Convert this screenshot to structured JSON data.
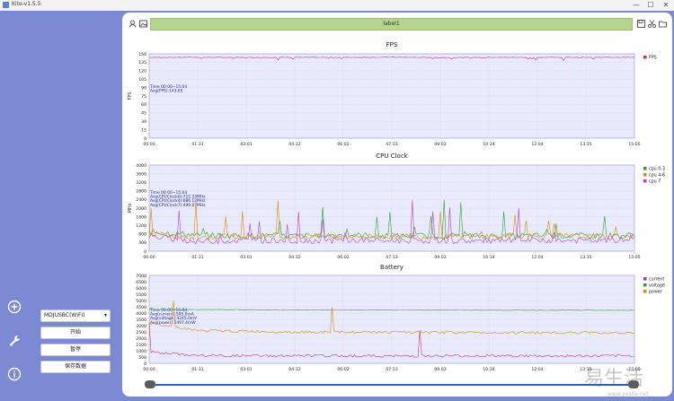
{
  "window": {
    "title": "Kite-v1.5.5",
    "minimize": "—",
    "maximize": "☐",
    "close": "✕"
  },
  "toolbar": {
    "label": "label1",
    "icons": [
      "user-icon",
      "image-icon",
      "save-icon",
      "cut-icon",
      "folder-icon"
    ]
  },
  "sidebar": {
    "icons": [
      "add-icon",
      "wrench-icon",
      "info-icon"
    ]
  },
  "controls": {
    "device": "MDJUSBC(WIFI)",
    "start_label": "开始",
    "pause_label": "暂停",
    "save_label": "保存数据"
  },
  "watermark": {
    "text": "易生活",
    "sub": "www.yesife.net"
  },
  "colors": {
    "background": "#7b88d2",
    "plot_bg": "#e9eafc",
    "fps": "#c2336f",
    "cpu03": "#2ca02c",
    "cpu46": "#d98b00",
    "cpu7": "#b33fcf",
    "current": "#c2337a",
    "voltage": "#2ca02c",
    "power": "#d98b00"
  },
  "x_ticks": [
    "00:00",
    "01:31",
    "03:01",
    "04:32",
    "06:02",
    "07:33",
    "09:03",
    "10:34",
    "12:04",
    "13:35",
    "15:05"
  ],
  "chart_data": [
    {
      "type": "line",
      "title": "FPS",
      "ylabel": "FPS",
      "ylim": [
        0,
        150
      ],
      "y_ticks": [
        "0",
        "15",
        "30",
        "45",
        "60",
        "75",
        "90",
        "105",
        "120",
        "135",
        "150"
      ],
      "annotation": [
        "Time 00:00~15:04",
        "Avg(FPS):143.65"
      ],
      "series": [
        {
          "name": "FPS",
          "values": [
            143.6,
            143.8,
            143.5,
            143.7,
            143.6,
            143.9,
            143.4,
            143.7,
            143.6,
            143.8,
            143.7
          ]
        }
      ]
    },
    {
      "type": "line",
      "title": "CPU Clock",
      "ylabel": "MHz",
      "ylim": [
        0,
        4000
      ],
      "y_ticks": [
        "0",
        "400",
        "800",
        "1200",
        "1600",
        "2000",
        "2400",
        "2800",
        "3200",
        "3600",
        "4000"
      ],
      "annotation": [
        "Time 00:00~15:04",
        "Avg(CPUClock0):722.33MHz",
        "Avg(CPUClock4):686.12MHz",
        "Avg(CPUClock7):499.07MHz"
      ],
      "series": [
        {
          "name": "cpu 0-3",
          "values": [
            900,
            750,
            720,
            700,
            760,
            690,
            730,
            700,
            720,
            710,
            740
          ]
        },
        {
          "name": "cpu 4-6",
          "values": [
            800,
            650,
            700,
            680,
            690,
            700,
            660,
            690,
            700,
            680,
            700
          ]
        },
        {
          "name": "cpu 7",
          "values": [
            700,
            450,
            500,
            480,
            510,
            490,
            500,
            470,
            500,
            490,
            520
          ]
        }
      ]
    },
    {
      "type": "line",
      "title": "Battery",
      "ylabel": "",
      "ylim": [
        0,
        7000
      ],
      "y_ticks": [
        "0",
        "500",
        "1000",
        "1500",
        "2000",
        "2500",
        "3000",
        "3500",
        "4000",
        "4500",
        "5000",
        "5500",
        "6000",
        "6500",
        "7000"
      ],
      "annotation": [
        "Time 00:00~15:04",
        "Avg(current):595.0mA",
        "Avg(voltage):4245.0mV",
        "Avg(power):2497.4mW"
      ],
      "series": [
        {
          "name": "current",
          "values": [
            900,
            620,
            600,
            590,
            600,
            580,
            590,
            600,
            590,
            585,
            600
          ]
        },
        {
          "name": "voltage",
          "values": [
            4300,
            4280,
            4270,
            4260,
            4250,
            4245,
            4240,
            4235,
            4230,
            4225,
            4220
          ]
        },
        {
          "name": "power",
          "values": [
            3200,
            2600,
            2550,
            2500,
            2480,
            2470,
            2460,
            2450,
            2440,
            2430,
            2450
          ]
        }
      ]
    }
  ]
}
